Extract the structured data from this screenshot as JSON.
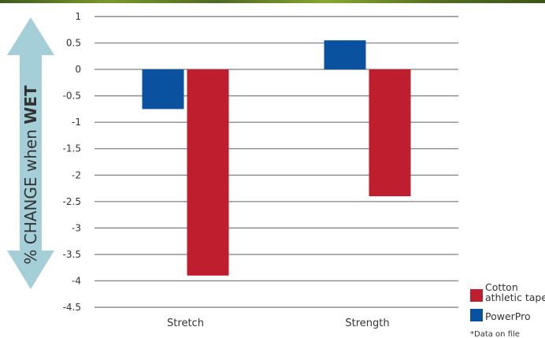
{
  "chart_data": {
    "type": "bar",
    "categories": [
      "Stretch",
      "Strength"
    ],
    "series": [
      {
        "name": "PowerPro",
        "color": "#0a52a0",
        "values": [
          -0.75,
          0.55
        ]
      },
      {
        "name": "Cotton athletic tape",
        "name_lines": [
          "Cotton",
          "athletic tape"
        ],
        "color": "#be1e2d",
        "values": [
          -3.9,
          -2.4
        ]
      }
    ],
    "ylim": [
      -4.5,
      1
    ],
    "yticks": [
      "1",
      "0.5",
      "0",
      "-0.5",
      "-1",
      "-1.5",
      "-2",
      "-2.5",
      "-3",
      "-3.5",
      "-4",
      "-4.5"
    ],
    "ylabel": {
      "prefix": "% CHANGE when ",
      "emphasis": "WET"
    },
    "ylabel_arrow_color": "#a4cfd9",
    "grid": true,
    "legend_position": "bottom-right",
    "footnote": "*Data on file"
  }
}
